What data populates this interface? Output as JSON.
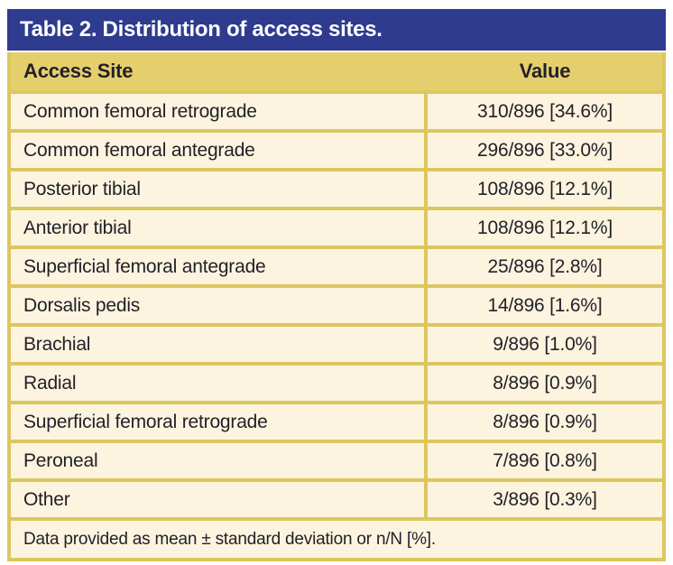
{
  "table": {
    "title": "Table 2. Distribution of access sites.",
    "columns": {
      "site": "Access Site",
      "value": "Value"
    },
    "rows": [
      {
        "site": "Common femoral retrograde",
        "value": "310/896 [34.6%]"
      },
      {
        "site": "Common femoral antegrade",
        "value": "296/896 [33.0%]"
      },
      {
        "site": "Posterior tibial",
        "value": "108/896 [12.1%]"
      },
      {
        "site": "Anterior tibial",
        "value": "108/896 [12.1%]"
      },
      {
        "site": "Superficial femoral antegrade",
        "value": "25/896 [2.8%]"
      },
      {
        "site": "Dorsalis pedis",
        "value": "14/896 [1.6%]"
      },
      {
        "site": "Brachial",
        "value": "9/896 [1.0%]"
      },
      {
        "site": "Radial",
        "value": "8/896 [0.9%]"
      },
      {
        "site": "Superficial femoral retrograde",
        "value": "8/896 [0.9%]"
      },
      {
        "site": "Peroneal",
        "value": "7/896 [0.8%]"
      },
      {
        "site": "Other",
        "value": "3/896 [0.3%]"
      }
    ],
    "footnote": "Data provided as mean ± standard deviation or n/N [%].",
    "colors": {
      "title_bar_bg": "#2e3b8e",
      "title_text": "#ffffff",
      "column_header_bg": "#e5cf6d",
      "row_bg": "#fcf4df",
      "border": "#dcc75f",
      "body_text": "#232029",
      "page_bg": "#ffffff"
    }
  },
  "chart_data": {
    "type": "table",
    "title": "Table 2. Distribution of access sites.",
    "categories": [
      "Common femoral retrograde",
      "Common femoral antegrade",
      "Posterior tibial",
      "Anterior tibial",
      "Superficial femoral antegrade",
      "Dorsalis pedis",
      "Brachial",
      "Radial",
      "Superficial femoral retrograde",
      "Peroneal",
      "Other"
    ],
    "counts": [
      310,
      296,
      108,
      108,
      25,
      14,
      9,
      8,
      8,
      7,
      3
    ],
    "denominator": 896,
    "percentages": [
      34.6,
      33.0,
      12.1,
      12.1,
      2.8,
      1.6,
      1.0,
      0.9,
      0.9,
      0.8,
      0.3
    ]
  }
}
